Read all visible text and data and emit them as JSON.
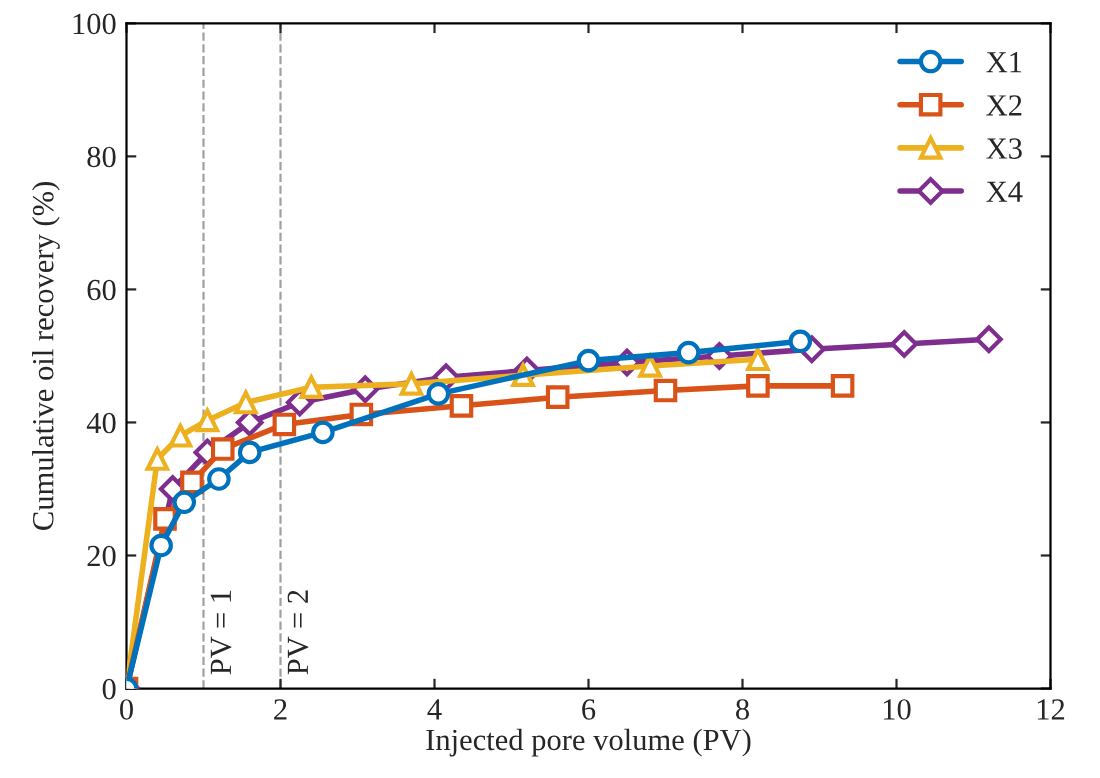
{
  "chart_data": {
    "type": "line",
    "xlabel": "Injected pore volume (PV)",
    "ylabel": "Cumulative oil recovery (%)",
    "xlim": [
      0,
      12
    ],
    "ylim": [
      0,
      100
    ],
    "xticks": [
      0,
      2,
      4,
      6,
      8,
      10,
      12
    ],
    "yticks": [
      0,
      20,
      40,
      60,
      80,
      100
    ],
    "grid": false,
    "legend": "top right",
    "line_style": "solid",
    "ref_lines": [
      {
        "axis": "x",
        "value": 1,
        "label": "PV = 1",
        "color": "#a0a0a0",
        "line_style": "dashed"
      },
      {
        "axis": "x",
        "value": 2,
        "label": "PV = 2",
        "color": "#a0a0a0",
        "line_style": "dashed"
      }
    ],
    "series": [
      {
        "name": "X1",
        "color": "#0072bd",
        "marker": "circle",
        "x": [
          0,
          0.45,
          0.75,
          1.2,
          1.6,
          2.55,
          4.05,
          6.0,
          7.3,
          8.75
        ],
        "values": [
          0,
          21.5,
          28,
          31.5,
          35.5,
          38.5,
          44.3,
          49.3,
          50.5,
          52.2
        ]
      },
      {
        "name": "X2",
        "color": "#d95319",
        "marker": "square",
        "x": [
          0,
          0.5,
          0.85,
          1.25,
          2.05,
          3.05,
          4.35,
          5.6,
          7.0,
          8.2,
          9.3
        ],
        "values": [
          0,
          25.5,
          31,
          36,
          39.7,
          41.2,
          42.5,
          43.8,
          44.8,
          45.5,
          45.5
        ]
      },
      {
        "name": "X3",
        "color": "#edb120",
        "marker": "triangle",
        "x": [
          0,
          0.4,
          0.7,
          1.05,
          1.55,
          2.4,
          3.7,
          5.15,
          6.8,
          8.2
        ],
        "values": [
          0,
          34.5,
          38,
          40.3,
          43,
          45.3,
          45.8,
          47.1,
          48.5,
          49.5
        ]
      },
      {
        "name": "X4",
        "color": "#7e2f8e",
        "marker": "diamond",
        "x": [
          0,
          0.6,
          1.05,
          1.6,
          2.25,
          3.1,
          4.15,
          5.2,
          6.5,
          7.7,
          8.9,
          10.1,
          11.2
        ],
        "values": [
          0,
          30,
          35.5,
          40,
          43,
          45,
          46.8,
          47.8,
          49,
          50,
          51,
          51.8,
          52.5
        ]
      }
    ]
  }
}
